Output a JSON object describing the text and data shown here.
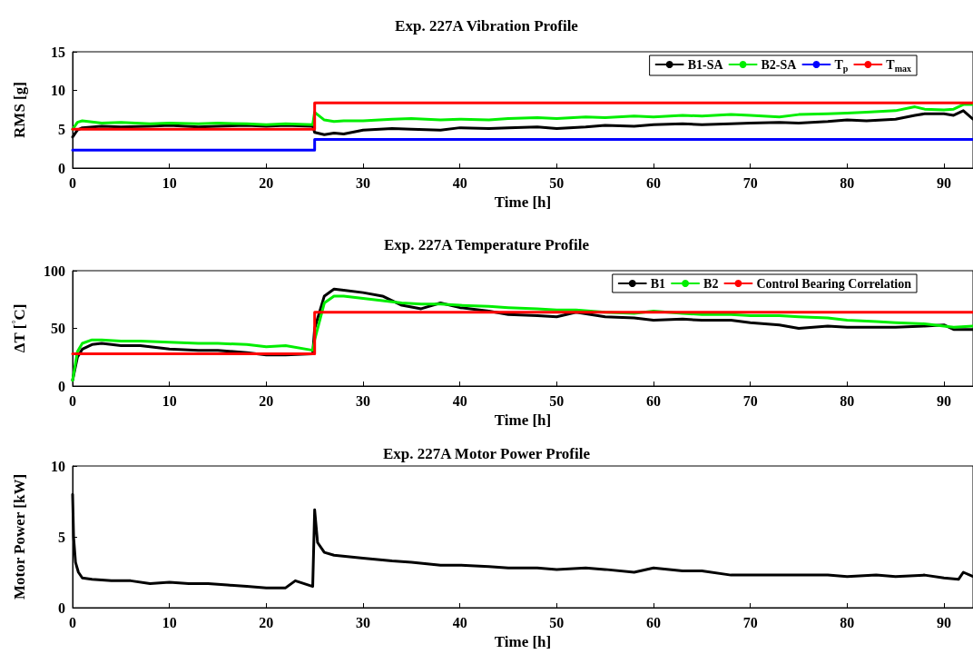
{
  "chart_data": [
    {
      "type": "line",
      "title": "Exp. 227A Vibration Profile",
      "xlabel": "Time [h]",
      "ylabel": "RMS [g]",
      "xlim": [
        0,
        93
      ],
      "xticks": [
        0,
        10,
        20,
        30,
        40,
        50,
        60,
        70,
        80,
        90
      ],
      "ylim": [
        0,
        15
      ],
      "yticks": [
        0,
        5,
        10,
        15
      ],
      "legend": "top right",
      "grid": false,
      "marker": "none",
      "line_style": "solid",
      "series": [
        {
          "name": "B1-SA",
          "color": "#000000",
          "x": [
            0,
            0.5,
            1,
            3,
            5,
            8,
            10,
            13,
            15,
            18,
            20,
            22,
            24.8,
            25,
            26,
            27,
            28,
            30,
            33,
            35,
            38,
            40,
            43,
            45,
            48,
            50,
            53,
            55,
            58,
            60,
            63,
            65,
            68,
            70,
            73,
            75,
            78,
            80,
            82,
            85,
            87,
            88,
            90,
            91,
            92,
            93
          ],
          "values": [
            4,
            4.9,
            5.2,
            5.4,
            5.3,
            5.4,
            5.5,
            5.3,
            5.4,
            5.5,
            5.4,
            5.5,
            5.4,
            4.6,
            4.3,
            4.5,
            4.4,
            4.9,
            5.1,
            5,
            4.9,
            5.2,
            5.1,
            5.2,
            5.3,
            5.1,
            5.3,
            5.5,
            5.4,
            5.6,
            5.7,
            5.6,
            5.7,
            5.8,
            5.9,
            5.8,
            6,
            6.2,
            6.1,
            6.3,
            6.8,
            7,
            7,
            6.8,
            7.4,
            6.3
          ]
        },
        {
          "name": "B2-SA",
          "color": "#00ee00",
          "x": [
            0,
            0.5,
            1,
            3,
            5,
            8,
            10,
            13,
            15,
            18,
            20,
            22,
            24.8,
            25,
            26,
            27,
            28,
            30,
            33,
            35,
            38,
            40,
            43,
            45,
            48,
            50,
            53,
            55,
            58,
            60,
            63,
            65,
            68,
            70,
            73,
            75,
            78,
            80,
            82,
            85,
            87,
            88,
            90,
            91,
            92,
            93
          ],
          "values": [
            5,
            5.9,
            6.1,
            5.8,
            5.9,
            5.7,
            5.8,
            5.7,
            5.8,
            5.7,
            5.6,
            5.7,
            5.6,
            7.2,
            6.2,
            6,
            6.1,
            6.1,
            6.3,
            6.4,
            6.2,
            6.3,
            6.2,
            6.4,
            6.5,
            6.4,
            6.6,
            6.5,
            6.7,
            6.6,
            6.8,
            6.7,
            6.9,
            6.8,
            6.6,
            6.9,
            7,
            7.1,
            7.2,
            7.4,
            7.9,
            7.6,
            7.5,
            7.6,
            8.2,
            8.2
          ]
        },
        {
          "name": "T$_{p}$",
          "color": "#0000ff",
          "x": [
            0,
            25,
            25,
            93
          ],
          "values": [
            2.3,
            2.3,
            3.7,
            3.7
          ]
        },
        {
          "name": "T$_{max}$",
          "color": "#ff0000",
          "x": [
            0,
            25,
            25,
            93
          ],
          "values": [
            5,
            5,
            8.4,
            8.4
          ]
        }
      ]
    },
    {
      "type": "line",
      "title": "Exp. 227A Temperature Profile",
      "xlabel": "Time [h]",
      "ylabel": "ΔT [$^{°}$C]",
      "xlim": [
        0,
        93
      ],
      "xticks": [
        0,
        10,
        20,
        30,
        40,
        50,
        60,
        70,
        80,
        90
      ],
      "ylim": [
        0,
        100
      ],
      "yticks": [
        0,
        50,
        100
      ],
      "legend": "top right",
      "grid": false,
      "marker": "none",
      "line_style": "solid",
      "series": [
        {
          "name": "B1",
          "color": "#000000",
          "x": [
            0,
            0.5,
            1,
            2,
            3,
            5,
            7,
            10,
            13,
            15,
            18,
            20,
            22,
            24.8,
            25,
            26,
            27,
            28,
            30,
            32,
            34,
            36,
            38,
            40,
            43,
            45,
            48,
            50,
            52,
            55,
            58,
            60,
            63,
            65,
            68,
            70,
            73,
            75,
            78,
            80,
            83,
            85,
            88,
            90,
            91,
            93
          ],
          "values": [
            5,
            25,
            32,
            36,
            37,
            35,
            35,
            32,
            31,
            31,
            29,
            27,
            27,
            28,
            50,
            78,
            84,
            83,
            81,
            78,
            70,
            67,
            72,
            68,
            65,
            62,
            61,
            60,
            64,
            60,
            59,
            57,
            58,
            57,
            57,
            55,
            53,
            50,
            52,
            51,
            51,
            51,
            52,
            53,
            49,
            49
          ]
        },
        {
          "name": "B2",
          "color": "#00ee00",
          "x": [
            0,
            0.5,
            1,
            2,
            3,
            5,
            7,
            10,
            13,
            15,
            18,
            20,
            22,
            24.8,
            25,
            26,
            27,
            28,
            30,
            32,
            34,
            36,
            38,
            40,
            43,
            45,
            48,
            50,
            52,
            55,
            58,
            60,
            63,
            65,
            68,
            70,
            73,
            75,
            78,
            80,
            83,
            85,
            88,
            90,
            91,
            93
          ],
          "values": [
            5,
            30,
            37,
            40,
            40,
            39,
            39,
            38,
            37,
            37,
            36,
            34,
            35,
            31,
            40,
            72,
            78,
            78,
            76,
            74,
            72,
            71,
            71,
            70,
            69,
            68,
            67,
            66,
            66,
            64,
            63,
            65,
            63,
            62,
            62,
            61,
            61,
            60,
            59,
            57,
            56,
            55,
            54,
            52,
            51,
            52
          ]
        },
        {
          "name": "Control Bearing Correlation",
          "color": "#ff0000",
          "x": [
            0,
            25,
            25,
            93
          ],
          "values": [
            28,
            28,
            64,
            64
          ]
        }
      ]
    },
    {
      "type": "line",
      "title": "Exp. 227A Motor Power Profile",
      "xlabel": "Time [h]",
      "ylabel": "Motor Power [kW]",
      "xlim": [
        0,
        93
      ],
      "xticks": [
        0,
        10,
        20,
        30,
        40,
        50,
        60,
        70,
        80,
        90
      ],
      "ylim": [
        0,
        10
      ],
      "yticks": [
        0,
        5,
        10
      ],
      "legend": false,
      "grid": false,
      "marker": "none",
      "line_style": "solid",
      "series": [
        {
          "color": "#000000",
          "x": [
            0,
            0.1,
            0.3,
            0.6,
            1,
            2,
            4,
            6,
            8,
            10,
            12,
            14,
            16,
            18,
            20,
            22,
            23,
            24.8,
            25,
            25.3,
            26,
            27,
            30,
            33,
            35,
            38,
            40,
            43,
            45,
            48,
            50,
            53,
            55,
            58,
            60,
            63,
            65,
            68,
            70,
            72,
            75,
            78,
            80,
            83,
            85,
            88,
            90,
            91.5,
            92,
            93
          ],
          "values": [
            8,
            5,
            3.2,
            2.5,
            2.1,
            2,
            1.9,
            1.9,
            1.7,
            1.8,
            1.7,
            1.7,
            1.6,
            1.5,
            1.4,
            1.4,
            1.9,
            1.5,
            6.9,
            4.6,
            3.9,
            3.7,
            3.5,
            3.3,
            3.2,
            3,
            3,
            2.9,
            2.8,
            2.8,
            2.7,
            2.8,
            2.7,
            2.5,
            2.8,
            2.6,
            2.6,
            2.3,
            2.3,
            2.3,
            2.3,
            2.3,
            2.2,
            2.3,
            2.2,
            2.3,
            2.1,
            2,
            2.5,
            2.2
          ]
        }
      ]
    }
  ]
}
